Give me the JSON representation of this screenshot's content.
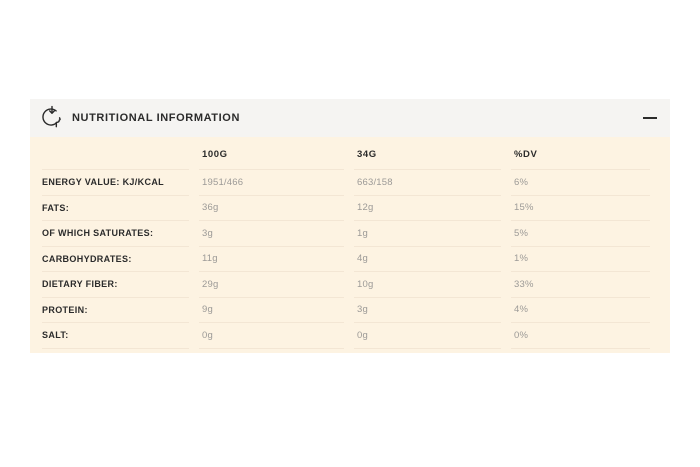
{
  "panel": {
    "title": "NUTRITIONAL INFORMATION",
    "state": "expanded"
  },
  "icons": {
    "header_icon": "head-with-down-arrow-intake-icon",
    "collapse_icon": "minus"
  },
  "colors": {
    "header_bg": "#f5f4f2",
    "table_bg": "#fdf3e2",
    "row_border": "#f3e6d4",
    "label_text": "#2b2b2b",
    "value_text": "#9c9a97"
  },
  "table": {
    "columns": [
      "",
      "100G",
      "34G",
      "%DV"
    ],
    "rows": [
      {
        "label": "ENERGY VALUE: KJ/KCAL",
        "values": [
          "1951/466",
          "663/158",
          "6%"
        ]
      },
      {
        "label": "FATS:",
        "values": [
          "36g",
          "12g",
          "15%"
        ]
      },
      {
        "label": "OF WHICH SATURATES:",
        "values": [
          "3g",
          "1g",
          "5%"
        ]
      },
      {
        "label": "CARBOHYDRATES:",
        "values": [
          "11g",
          "4g",
          "1%"
        ]
      },
      {
        "label": "DIETARY FIBER:",
        "values": [
          "29g",
          "10g",
          "33%"
        ]
      },
      {
        "label": "PROTEIN:",
        "values": [
          "9g",
          "3g",
          "4%"
        ]
      },
      {
        "label": "SALT:",
        "values": [
          "0g",
          "0g",
          "0%"
        ]
      }
    ]
  }
}
